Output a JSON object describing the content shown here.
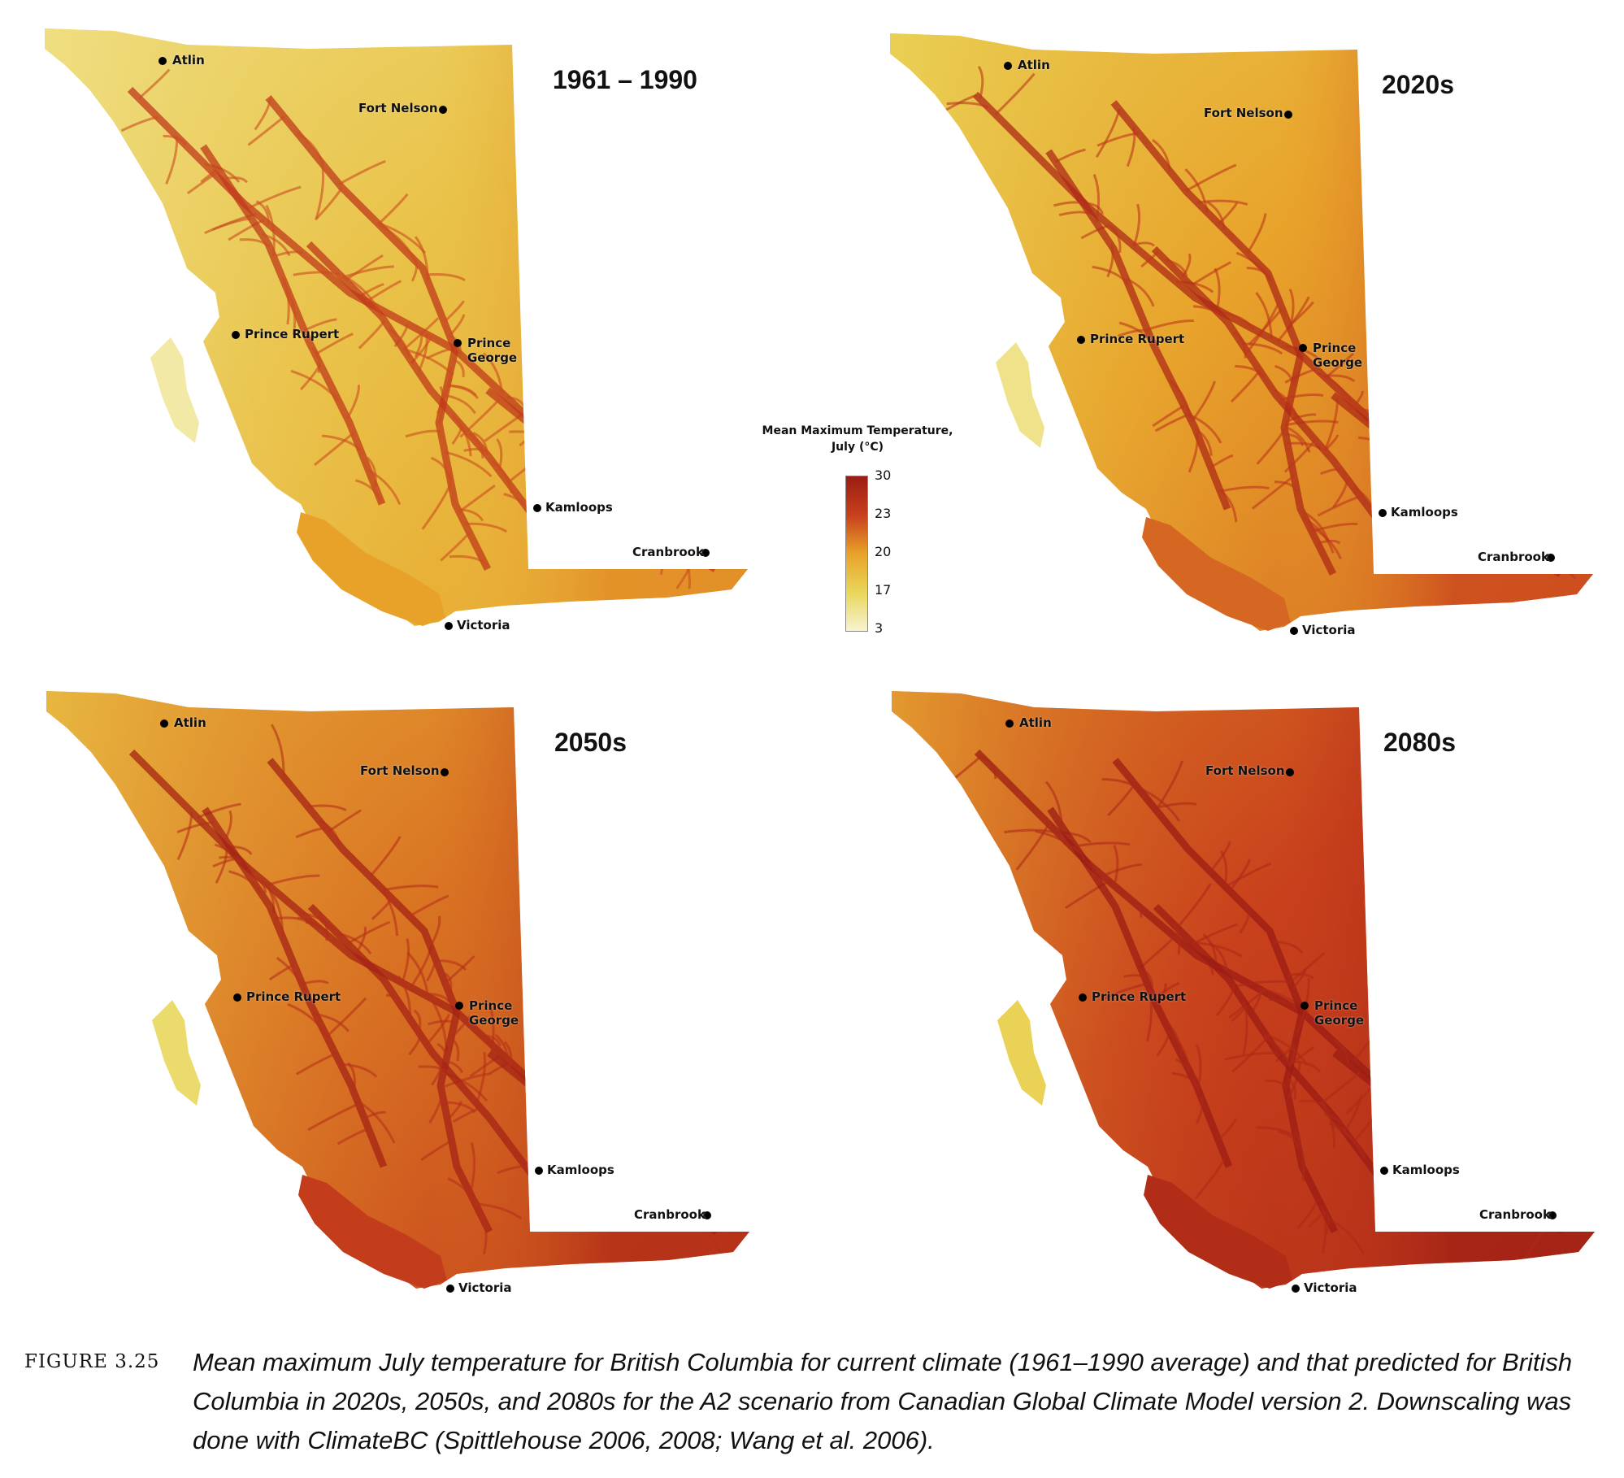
{
  "panels": [
    {
      "title": "1961 – 1990",
      "fill_levels": {
        "north": 0.18,
        "east": 0.55,
        "centre": 0.35,
        "south": 0.5,
        "coast": 0.15,
        "valleys": 0.8
      }
    },
    {
      "title": "2020s",
      "fill_levels": {
        "north": 0.3,
        "east": 0.72,
        "centre": 0.5,
        "south": 0.65,
        "coast": 0.25,
        "valleys": 0.9
      }
    },
    {
      "title": "2050s",
      "fill_levels": {
        "north": 0.45,
        "east": 0.86,
        "centre": 0.62,
        "south": 0.78,
        "coast": 0.35,
        "valleys": 0.95
      }
    },
    {
      "title": "2080s",
      "fill_levels": {
        "north": 0.6,
        "east": 0.95,
        "centre": 0.75,
        "south": 0.88,
        "coast": 0.45,
        "valleys": 1.0
      }
    }
  ],
  "cities": [
    {
      "key": "atlin",
      "label": "Atlin"
    },
    {
      "key": "fort_nelson",
      "label": "Fort Nelson"
    },
    {
      "key": "prince_rupert",
      "label": "Prince Rupert"
    },
    {
      "key": "prince_george",
      "label": "Prince\nGeorge"
    },
    {
      "key": "kamloops",
      "label": "Kamloops"
    },
    {
      "key": "cranbrook",
      "label": "Cranbrook"
    },
    {
      "key": "victoria",
      "label": "Victoria"
    }
  ],
  "legend": {
    "title_line1": "Mean Maximum Temperature,",
    "title_line2": "July (°C)",
    "ticks": [
      "30",
      "23",
      "20",
      "17",
      "3"
    ],
    "colors": {
      "high": "#9b1c14",
      "upper": "#c8401c",
      "mid": "#e8a22a",
      "lower": "#e9d65a",
      "low": "#f7f3d2"
    }
  },
  "caption": {
    "label": "FIGURE 3.25",
    "text": "Mean maximum July temperature for British Columbia for current climate (1961–1990 average) and that predicted for British Columbia in 2020s, 2050s, and 2080s for the A2 scenario from Canadian Global Climate Model version 2. Downscaling was done with ClimateBC (Spittlehouse 2006, 2008; Wang et al. 2006)."
  }
}
